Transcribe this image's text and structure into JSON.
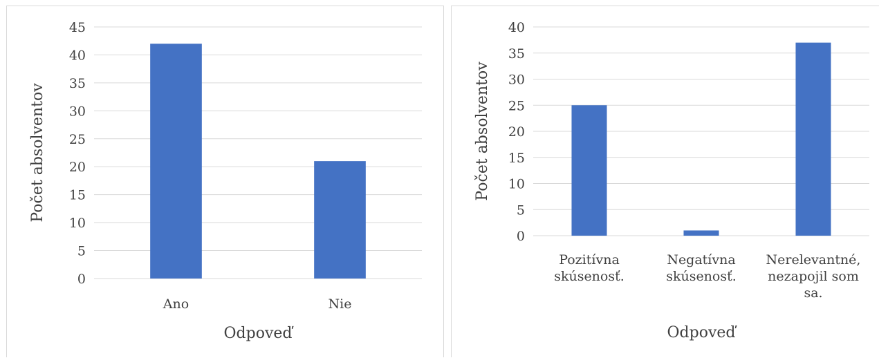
{
  "chart_data": [
    {
      "type": "bar",
      "categories": [
        "Ano",
        "Nie"
      ],
      "values": [
        42,
        21
      ],
      "title": "",
      "xlabel": "Odpoveď",
      "ylabel": "Počet absolventov",
      "ylim": [
        0,
        45
      ],
      "ytick_step": 5,
      "grid": true,
      "bar_color": "#4472C4"
    },
    {
      "type": "bar",
      "categories": [
        "Pozitívna skúsenosť.",
        "Negatívna skúsenosť.",
        "Nerelevantné, nezapojil som sa."
      ],
      "category_lines": [
        [
          "Pozitívna",
          "skúsenosť."
        ],
        [
          "Negatívna",
          "skúsenosť."
        ],
        [
          "Nerelevantné,",
          "nezapojil som",
          "sa."
        ]
      ],
      "values": [
        25,
        1,
        37
      ],
      "title": "",
      "xlabel": "Odpoveď",
      "ylabel": "Počet absolventov",
      "ylim": [
        0,
        40
      ],
      "ytick_step": 5,
      "grid": true,
      "bar_color": "#4472C4"
    }
  ],
  "colors": {
    "grid": "#d9d9d9",
    "text": "#404040",
    "border": "#d9d9d9"
  }
}
